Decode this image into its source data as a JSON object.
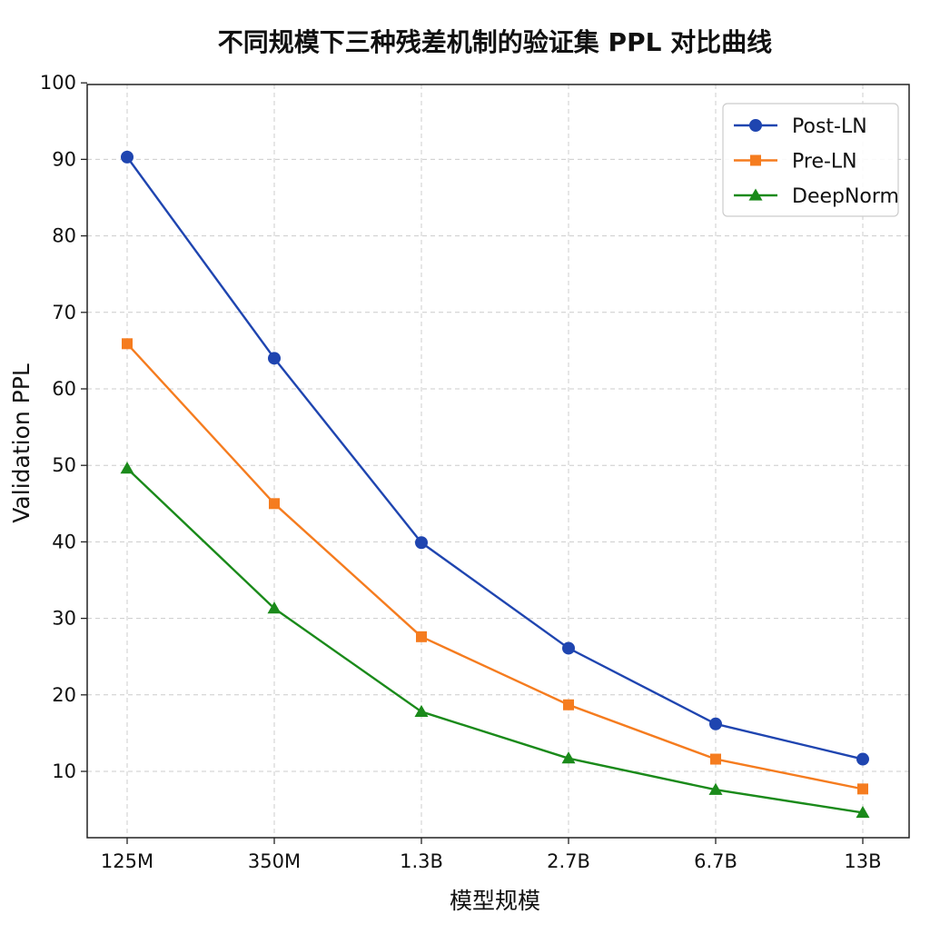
{
  "chart_data": {
    "type": "line",
    "title": "不同规模下三种残差机制的验证集 PPL 对比曲线",
    "xlabel": "模型规模",
    "ylabel": "Validation PPL",
    "categories": [
      "125M",
      "350M",
      "1.3B",
      "2.7B",
      "6.7B",
      "13B"
    ],
    "yticks": [
      10,
      20,
      30,
      40,
      50,
      60,
      70,
      80,
      90,
      100
    ],
    "ylim": [
      1.5,
      100
    ],
    "grid": true,
    "legend_position": "top-right",
    "series": [
      {
        "name": "Post-LN",
        "color": "#1f45b0",
        "marker": "circle",
        "values": [
          90.3,
          64.0,
          39.9,
          26.1,
          16.2,
          11.6
        ]
      },
      {
        "name": "Pre-LN",
        "color": "#f57c1f",
        "marker": "square",
        "values": [
          65.9,
          45.0,
          27.6,
          18.7,
          11.6,
          7.7
        ]
      },
      {
        "name": "DeepNorm",
        "color": "#1a8a1a",
        "marker": "triangle",
        "values": [
          49.6,
          31.3,
          17.8,
          11.7,
          7.6,
          4.6
        ]
      }
    ]
  }
}
